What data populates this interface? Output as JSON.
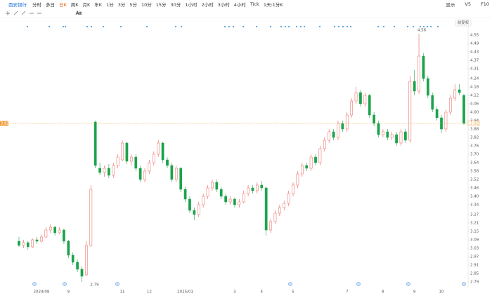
{
  "toolbar": {
    "stock": "西安银行",
    "tabs": [
      "分时",
      "多日",
      "日K",
      "周K",
      "月K",
      "年K",
      "1分",
      "3分",
      "5分",
      "10分",
      "15分",
      "30分",
      "1小时",
      "2小时",
      "3小时",
      "4小时",
      "Tick",
      "1天:1分K"
    ],
    "selected": "日K",
    "right": [
      "显示",
      "V5",
      "F10"
    ]
  },
  "adjust_button": "前复权",
  "chart_data": {
    "type": "candlestick",
    "categories": [
      null,
      null,
      null,
      null,
      null,
      "2024/08",
      null,
      null,
      null,
      null,
      null,
      "9",
      null,
      null,
      null,
      null,
      null,
      null,
      null,
      null,
      null,
      null,
      null,
      "11",
      null,
      null,
      null,
      null,
      null,
      "12",
      null,
      null,
      null,
      null,
      null,
      null,
      null,
      "2025/01",
      null,
      null,
      null,
      null,
      null,
      null,
      null,
      null,
      null,
      null,
      "3",
      null,
      null,
      null,
      null,
      null,
      "4",
      null,
      null,
      null,
      null,
      null,
      null,
      "5",
      null,
      null,
      null,
      null,
      null,
      null,
      null,
      null,
      null,
      null,
      null,
      "7",
      null,
      null,
      null,
      null,
      null,
      null,
      null,
      "8",
      null,
      null,
      null,
      null,
      null,
      null,
      "9",
      null,
      null,
      null,
      null,
      null,
      "10",
      null,
      null,
      null,
      null,
      null
    ],
    "candles": [
      [
        3.08,
        3.11,
        3.04,
        3.05
      ],
      [
        3.05,
        3.09,
        3.03,
        3.07
      ],
      [
        3.07,
        3.08,
        3.02,
        3.04
      ],
      [
        3.04,
        3.1,
        3.03,
        3.09
      ],
      [
        3.09,
        3.11,
        3.06,
        3.08
      ],
      [
        3.08,
        3.13,
        3.07,
        3.11
      ],
      [
        3.11,
        3.18,
        3.1,
        3.16
      ],
      [
        3.16,
        3.2,
        3.14,
        3.18
      ],
      [
        3.18,
        3.19,
        3.12,
        3.14
      ],
      [
        3.14,
        3.18,
        3.13,
        3.16
      ],
      [
        3.16,
        3.17,
        3.06,
        3.08
      ],
      [
        3.08,
        3.09,
        2.96,
        2.98
      ],
      [
        2.98,
        3,
        2.91,
        2.93
      ],
      [
        2.93,
        2.95,
        2.86,
        2.88
      ],
      [
        2.88,
        2.9,
        2.79,
        2.83
      ],
      [
        2.84,
        3.08,
        2.83,
        3.05
      ],
      [
        3.05,
        3.48,
        3.04,
        3.45
      ],
      [
        3.93,
        3.94,
        3.6,
        3.62
      ],
      [
        3.6,
        3.64,
        3.55,
        3.57
      ],
      [
        3.57,
        3.62,
        3.54,
        3.6
      ],
      [
        3.6,
        3.63,
        3.53,
        3.55
      ],
      [
        3.55,
        3.64,
        3.53,
        3.62
      ],
      [
        3.62,
        3.7,
        3.6,
        3.68
      ],
      [
        3.66,
        3.8,
        3.65,
        3.78
      ],
      [
        3.78,
        3.79,
        3.63,
        3.65
      ],
      [
        3.65,
        3.7,
        3.62,
        3.68
      ],
      [
        3.68,
        3.7,
        3.58,
        3.6
      ],
      [
        3.6,
        3.62,
        3.5,
        3.52
      ],
      [
        3.52,
        3.6,
        3.5,
        3.58
      ],
      [
        3.58,
        3.66,
        3.56,
        3.64
      ],
      [
        3.64,
        3.72,
        3.62,
        3.7
      ],
      [
        3.7,
        3.8,
        3.68,
        3.78
      ],
      [
        3.78,
        3.79,
        3.64,
        3.66
      ],
      [
        3.66,
        3.68,
        3.6,
        3.62
      ],
      [
        3.62,
        3.64,
        3.5,
        3.52
      ],
      [
        3.52,
        3.62,
        3.5,
        3.6
      ],
      [
        3.6,
        3.61,
        3.43,
        3.45
      ],
      [
        3.45,
        3.47,
        3.36,
        3.38
      ],
      [
        3.38,
        3.4,
        3.28,
        3.3
      ],
      [
        3.3,
        3.32,
        3.23,
        3.27
      ],
      [
        3.27,
        3.36,
        3.25,
        3.34
      ],
      [
        3.34,
        3.42,
        3.32,
        3.4
      ],
      [
        3.4,
        3.48,
        3.38,
        3.46
      ],
      [
        3.46,
        3.52,
        3.44,
        3.5
      ],
      [
        3.5,
        3.52,
        3.43,
        3.45
      ],
      [
        3.45,
        3.47,
        3.38,
        3.4
      ],
      [
        3.4,
        3.42,
        3.34,
        3.36
      ],
      [
        3.36,
        3.4,
        3.34,
        3.38
      ],
      [
        3.38,
        3.39,
        3.32,
        3.34
      ],
      [
        3.34,
        3.38,
        3.32,
        3.36
      ],
      [
        3.36,
        3.44,
        3.35,
        3.42
      ],
      [
        3.42,
        3.48,
        3.4,
        3.46
      ],
      [
        3.46,
        3.48,
        3.42,
        3.44
      ],
      [
        3.44,
        3.5,
        3.42,
        3.48
      ],
      [
        3.48,
        3.51,
        3.44,
        3.46
      ],
      [
        3.46,
        3.47,
        3.12,
        3.16
      ],
      [
        3.16,
        3.24,
        3.14,
        3.22
      ],
      [
        3.22,
        3.3,
        3.2,
        3.28
      ],
      [
        3.28,
        3.34,
        3.26,
        3.32
      ],
      [
        3.32,
        3.37,
        3.3,
        3.35
      ],
      [
        3.35,
        3.44,
        3.33,
        3.42
      ],
      [
        3.42,
        3.5,
        3.4,
        3.48
      ],
      [
        3.48,
        3.58,
        3.46,
        3.56
      ],
      [
        3.56,
        3.64,
        3.54,
        3.62
      ],
      [
        3.62,
        3.64,
        3.58,
        3.6
      ],
      [
        3.6,
        3.7,
        3.58,
        3.68
      ],
      [
        3.68,
        3.7,
        3.62,
        3.64
      ],
      [
        3.64,
        3.76,
        3.62,
        3.74
      ],
      [
        3.74,
        3.82,
        3.72,
        3.8
      ],
      [
        3.8,
        3.88,
        3.78,
        3.86
      ],
      [
        3.86,
        3.88,
        3.8,
        3.82
      ],
      [
        3.82,
        3.94,
        3.8,
        3.92
      ],
      [
        3.92,
        3.94,
        3.86,
        3.88
      ],
      [
        3.88,
        4,
        3.86,
        3.98
      ],
      [
        3.98,
        4.1,
        3.96,
        4.08
      ],
      [
        4.08,
        4.18,
        4.06,
        4.14
      ],
      [
        4.14,
        4.16,
        4.04,
        4.06
      ],
      [
        4.06,
        4.14,
        4.04,
        4.12
      ],
      [
        4.12,
        4.13,
        3.96,
        3.98
      ],
      [
        3.98,
        4,
        3.9,
        3.92
      ],
      [
        3.92,
        3.94,
        3.82,
        3.84
      ],
      [
        3.84,
        3.88,
        3.82,
        3.86
      ],
      [
        3.86,
        3.88,
        3.8,
        3.82
      ],
      [
        3.82,
        3.86,
        3.8,
        3.84
      ],
      [
        3.84,
        3.86,
        3.76,
        3.78
      ],
      [
        3.78,
        3.88,
        3.76,
        3.86
      ],
      [
        3.86,
        3.88,
        3.78,
        3.8
      ],
      [
        3.8,
        4.26,
        3.78,
        4.22
      ],
      [
        4.22,
        4.3,
        4.12,
        4.15
      ],
      [
        4.15,
        4.56,
        4.13,
        4.4
      ],
      [
        4.4,
        4.42,
        4.22,
        4.24
      ],
      [
        4.24,
        4.26,
        4.1,
        4.12
      ],
      [
        4.12,
        4.14,
        4,
        4.02
      ],
      [
        4.02,
        4.04,
        3.94,
        3.96
      ],
      [
        3.96,
        3.98,
        3.85,
        3.88
      ],
      [
        3.88,
        4.02,
        3.86,
        4
      ],
      [
        4,
        4.12,
        3.98,
        4.1
      ],
      [
        4.1,
        4.2,
        4.08,
        4.16
      ],
      [
        4.16,
        4.2,
        4.12,
        4.14
      ],
      [
        4.12,
        4.13,
        3.91,
        3.92
      ]
    ],
    "up_color": "#e8615a",
    "down_color": "#1aa34a",
    "ylim": [
      2.775,
      4.65
    ],
    "yticks": [
      4.55,
      4.49,
      4.43,
      4.37,
      4.31,
      4.24,
      4.18,
      4.12,
      4.06,
      {
        "value": 4,
        "label": "4.00"
      },
      3.94,
      3.88,
      3.82,
      3.76,
      {
        "value": 3.7,
        "label": "3.70"
      },
      3.64,
      3.58,
      3.52,
      3.46,
      {
        "value": 3.4,
        "label": "3.40"
      },
      3.34,
      3.27,
      3.21,
      3.15,
      3.09,
      3.03,
      2.97,
      2.91,
      2.85,
      2.79
    ],
    "max_label": 4.56,
    "min_label": 2.79,
    "last_price": 3.92,
    "last_price_color": "#f0a040",
    "grid": false
  }
}
